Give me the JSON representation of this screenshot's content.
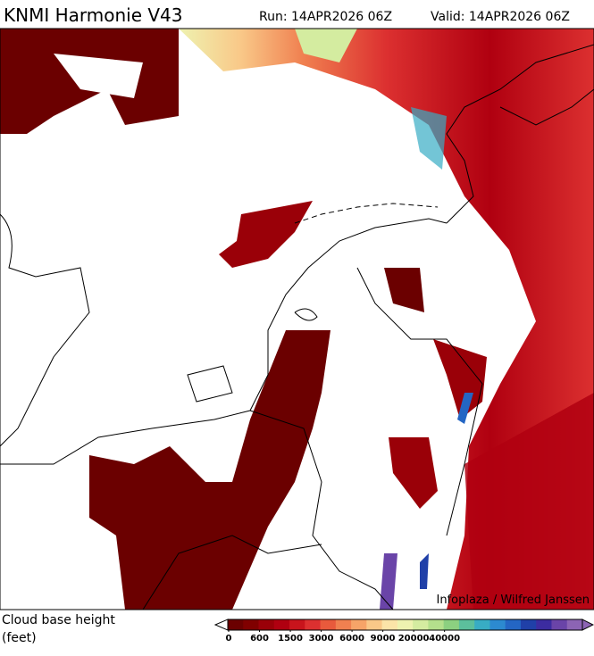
{
  "header": {
    "title": "KNMI Harmonie V43",
    "run": "Run: 14APR2026 06Z",
    "valid": "Valid: 14APR2026 06Z"
  },
  "credit": "Infoplaza / Wilfred Janssen",
  "legend": {
    "title": "Cloud base height",
    "unit": "(feet)",
    "colors": [
      "#6b0000",
      "#800000",
      "#9a0008",
      "#b00010",
      "#c8141c",
      "#dc3030",
      "#e85a3c",
      "#f08050",
      "#f6a468",
      "#f9c888",
      "#fbe4a8",
      "#eef2b0",
      "#d4eca0",
      "#b4e08c",
      "#8cd080",
      "#5cbf9c",
      "#38acc4",
      "#2c8ad0",
      "#2466c4",
      "#2040a8",
      "#3c2ca0",
      "#6a44a8",
      "#8c64b4"
    ],
    "ticks": [
      0,
      600,
      1500,
      3000,
      6000,
      9000,
      20000,
      40000
    ]
  }
}
